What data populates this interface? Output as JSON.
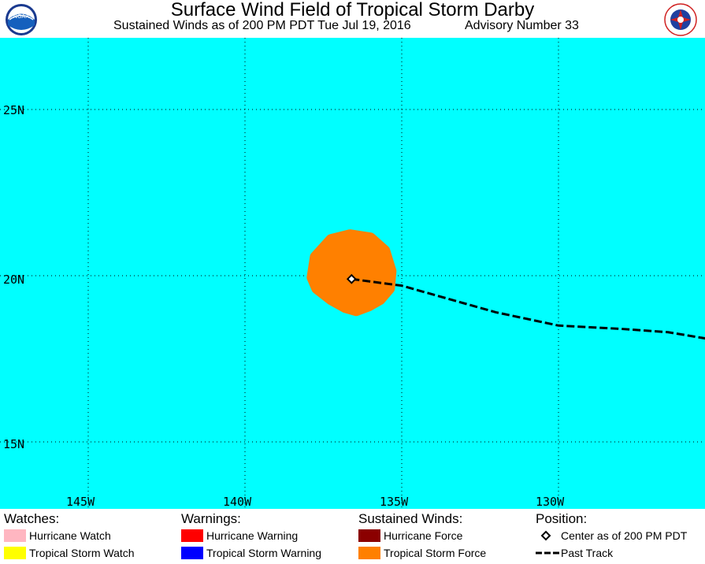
{
  "header": {
    "title": "Surface Wind Field of Tropical Storm Darby",
    "subtitle": "Sustained Winds as of 200 PM PDT Tue Jul 19, 2016",
    "advisory": "Advisory Number 33",
    "logo_left": "NOAA",
    "logo_right": "NATIONAL WEATHER SERVICE"
  },
  "map": {
    "ocean_color": "#00ffff",
    "lat_labels": [
      "25N",
      "20N",
      "15N"
    ],
    "lon_labels": [
      "145W",
      "140W",
      "135W",
      "130W"
    ],
    "storm_center": {
      "lon": -136.6,
      "lat": 19.9
    },
    "tropical_storm_force_color": "#ff8000",
    "past_track": [
      {
        "lon": -136.6,
        "lat": 19.9
      },
      {
        "lon": -135.0,
        "lat": 19.7
      },
      {
        "lon": -133.5,
        "lat": 19.3
      },
      {
        "lon": -132.0,
        "lat": 18.9
      },
      {
        "lon": -130.0,
        "lat": 18.5
      },
      {
        "lon": -128.0,
        "lat": 18.4
      },
      {
        "lon": -126.5,
        "lat": 18.3
      },
      {
        "lon": -124.6,
        "lat": 18.0
      }
    ]
  },
  "legend": {
    "watches": {
      "heading": "Watches:",
      "items": [
        {
          "label": "Hurricane Watch",
          "color": "#ffb6c1"
        },
        {
          "label": "Tropical Storm Watch",
          "color": "#ffff00"
        }
      ]
    },
    "warnings": {
      "heading": "Warnings:",
      "items": [
        {
          "label": "Hurricane Warning",
          "color": "#ff0000"
        },
        {
          "label": "Tropical Storm Warning",
          "color": "#0000ff"
        }
      ]
    },
    "winds": {
      "heading": "Sustained Winds:",
      "items": [
        {
          "label": "Hurricane Force",
          "color": "#8b0000"
        },
        {
          "label": "Tropical Storm Force",
          "color": "#ff8000"
        }
      ]
    },
    "position": {
      "heading": "Position:",
      "items": [
        {
          "label": "Center as of 200 PM PDT",
          "icon": "diamond-icon"
        },
        {
          "label": "Past Track",
          "icon": "dashed-line-icon"
        }
      ]
    }
  }
}
